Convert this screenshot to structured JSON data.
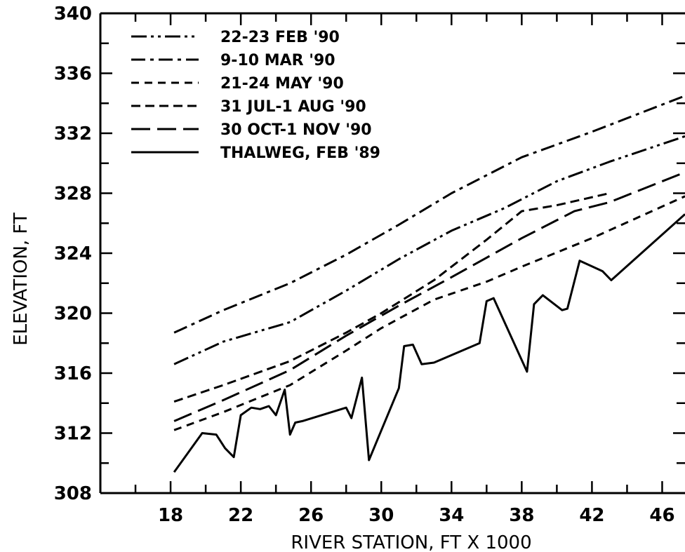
{
  "chart_data": {
    "type": "line",
    "title": "",
    "xlabel": "RIVER STATION, FT X 1000",
    "ylabel": "ELEVATION, FT",
    "xlim": [
      14,
      47.3
    ],
    "ylim": [
      308,
      340
    ],
    "x_ticks": [
      18,
      22,
      26,
      30,
      34,
      38,
      42,
      46
    ],
    "y_ticks": [
      308,
      312,
      316,
      320,
      324,
      328,
      332,
      336,
      340
    ],
    "grid": false,
    "legend_position": "top-left",
    "series": [
      {
        "name": "22-23 FEB '90",
        "dash": "long-short-short",
        "x": [
          18.2,
          21,
          24.8,
          28,
          31,
          34,
          37,
          40,
          43,
          47.3
        ],
        "y": [
          316.6,
          318.1,
          319.4,
          321.5,
          323.6,
          325.5,
          327,
          328.8,
          330.1,
          331.8
        ]
      },
      {
        "name": "9-10 MAR '90",
        "dash": "long-short",
        "x": [
          18.2,
          21,
          24.8,
          28,
          31,
          34,
          38,
          42,
          47.3
        ],
        "y": [
          318.7,
          320.2,
          322,
          323.9,
          325.9,
          328,
          330.4,
          332.1,
          334.5
        ]
      },
      {
        "name": "21-24 MAY '90",
        "dash": "short",
        "x": [
          18.2,
          21,
          24.8,
          28,
          30,
          33,
          36,
          38,
          42,
          47.3
        ],
        "y": [
          312.2,
          313.4,
          315.2,
          317.5,
          319,
          320.9,
          322.1,
          323.1,
          325,
          327.8
        ]
      },
      {
        "name": "31 JUL-1 AUG '90",
        "dash": "medium",
        "x": [
          18.2,
          21,
          24.8,
          28,
          30,
          33,
          36,
          38,
          40,
          43
        ],
        "y": [
          314.1,
          315.2,
          316.8,
          318.7,
          320,
          322.2,
          324.9,
          326.8,
          327.2,
          328
        ]
      },
      {
        "name": "30 OCT-1 NOV '90",
        "dash": "long",
        "x": [
          18.2,
          21,
          24.8,
          28,
          31,
          34,
          36,
          38,
          41,
          43,
          47.3
        ],
        "y": [
          312.8,
          314.2,
          316.2,
          318.5,
          320.5,
          322.4,
          323.7,
          325,
          326.8,
          327.4,
          329.4
        ]
      },
      {
        "name": "THALWEG, FEB '89",
        "dash": "solid",
        "x": [
          18.2,
          19.8,
          20.6,
          21.1,
          21.6,
          22,
          22.6,
          23.1,
          23.6,
          24,
          24.5,
          24.8,
          25.1,
          25.5,
          28,
          28.3,
          28.9,
          29.3,
          31,
          31.3,
          31.8,
          32.3,
          33,
          35.6,
          36,
          36.4,
          38.3,
          38.7,
          39.2,
          40.3,
          40.6,
          41.3,
          42.6,
          43.1,
          47.3
        ],
        "y": [
          309.4,
          312,
          311.9,
          311,
          310.4,
          313.2,
          313.7,
          313.6,
          313.8,
          313.2,
          314.9,
          311.9,
          312.7,
          312.8,
          313.7,
          313,
          315.7,
          310.2,
          315,
          317.8,
          317.9,
          316.6,
          316.7,
          318,
          320.8,
          321,
          316.1,
          320.6,
          321.2,
          320.2,
          320.3,
          323.5,
          322.8,
          322.2,
          326.6
        ]
      }
    ]
  }
}
